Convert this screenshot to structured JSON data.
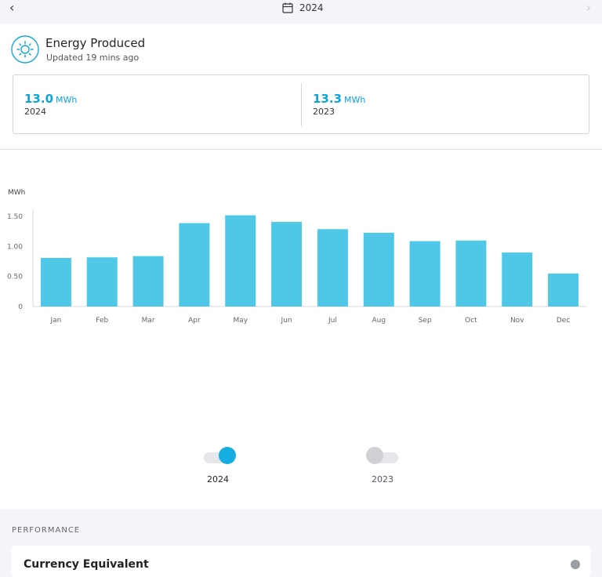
{
  "header": {
    "year": "2024",
    "icons": {
      "back": "chevron-left-icon",
      "forward": "chevron-right-icon",
      "calendar": "calendar-icon"
    }
  },
  "panel": {
    "title": "Energy Produced",
    "subtitle": "Updated 19 mins ago",
    "icon": "sun-icon",
    "summary": [
      {
        "value": "13.0",
        "unit": "MWh",
        "year": "2024"
      },
      {
        "value": "13.3",
        "unit": "MWh",
        "year": "2023"
      }
    ]
  },
  "chart_data": {
    "type": "bar",
    "ylabel": "MWh",
    "categories": [
      "Jan",
      "Feb",
      "Mar",
      "Apr",
      "May",
      "Jun",
      "Jul",
      "Aug",
      "Sep",
      "Oct",
      "Nov",
      "Dec"
    ],
    "series": [
      {
        "name": "2024",
        "color": "#4ec8e6",
        "values": [
          0.81,
          0.82,
          0.84,
          1.39,
          1.52,
          1.41,
          1.29,
          1.23,
          1.09,
          1.1,
          0.9,
          0.55
        ]
      }
    ],
    "yticks": [
      "0",
      "0.50",
      "1.00",
      "1.50"
    ],
    "ylim": [
      0,
      1.62
    ],
    "grid": false
  },
  "legend": [
    {
      "label": "2024",
      "active": true,
      "color": "#16ade0"
    },
    {
      "label": "2023",
      "active": false,
      "color": "#cfd0d3"
    }
  ],
  "performance": {
    "section_title": "PERFORMANCE",
    "card_title": "Currency Equivalent",
    "icon": "info-icon"
  },
  "colors": {
    "accent": "#0da5d8",
    "bar": "#4ec8e6"
  }
}
